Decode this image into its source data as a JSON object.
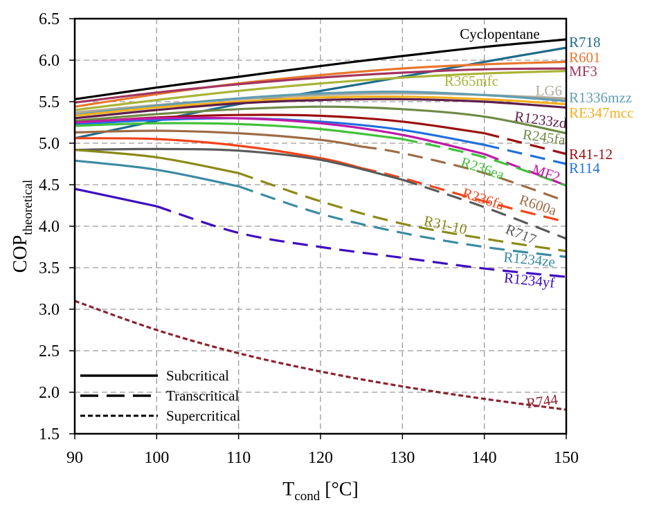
{
  "chart_data": {
    "type": "line",
    "title": "",
    "xlabel": "T",
    "xlabel_sub": "cond",
    "xlabel_unit": " [°C]",
    "ylabel": "COP",
    "ylabel_sub": "theoretical",
    "xlim": [
      90,
      150
    ],
    "ylim": [
      1.5,
      6.5
    ],
    "xticks": [
      90,
      100,
      110,
      120,
      130,
      140,
      150
    ],
    "yticks": [
      "1.5",
      "2.0",
      "2.5",
      "3.0",
      "3.5",
      "4.0",
      "4.5",
      "5.0",
      "5.5",
      "6.0",
      "6.5"
    ],
    "grid": true,
    "legend": {
      "placement": "bottom-left",
      "entries": [
        {
          "label": "Subcritical",
          "style": "solid"
        },
        {
          "label": "Transcritical",
          "style": "dashed"
        },
        {
          "label": "Supercritical",
          "style": "dotted"
        }
      ]
    },
    "x": [
      90,
      100,
      110,
      120,
      130,
      140,
      150
    ],
    "series": [
      {
        "name": "Cyclopentane",
        "color": "#000000",
        "values": [
          5.53,
          5.67,
          5.8,
          5.93,
          6.05,
          6.16,
          6.25
        ],
        "transcritical_from": null
      },
      {
        "name": "R718",
        "color": "#1f6b8a",
        "values": [
          5.06,
          5.27,
          5.47,
          5.63,
          5.8,
          5.98,
          6.15
        ],
        "transcritical_from": null
      },
      {
        "name": "R601",
        "color": "#e8772e",
        "values": [
          5.44,
          5.59,
          5.72,
          5.82,
          5.9,
          5.95,
          5.98
        ],
        "transcritical_from": null
      },
      {
        "name": "MF3",
        "color": "#a3345e",
        "values": [
          5.49,
          5.61,
          5.71,
          5.79,
          5.85,
          5.89,
          5.9
        ],
        "transcritical_from": null
      },
      {
        "name": "R365mfc",
        "color": "#a9b436",
        "values": [
          5.4,
          5.52,
          5.63,
          5.72,
          5.79,
          5.84,
          5.87
        ],
        "transcritical_from": null
      },
      {
        "name": "LG6",
        "color": "#b0aa9a",
        "values": [
          5.37,
          5.46,
          5.53,
          5.58,
          5.6,
          5.58,
          5.54
        ],
        "transcritical_from": null
      },
      {
        "name": "R1336mzz",
        "color": "#5f9db0",
        "values": [
          5.34,
          5.45,
          5.54,
          5.6,
          5.62,
          5.58,
          5.51
        ],
        "transcritical_from": null
      },
      {
        "name": "RE347mcc",
        "color": "#f2b01e",
        "values": [
          5.33,
          5.43,
          5.5,
          5.55,
          5.56,
          5.53,
          5.47
        ],
        "transcritical_from": null
      },
      {
        "name": "R1233zd",
        "color": "#5e1d4c",
        "values": [
          5.3,
          5.4,
          5.48,
          5.52,
          5.53,
          5.5,
          5.43
        ],
        "transcritical_from": null
      },
      {
        "name": "R245fa",
        "color": "#6f8a45",
        "values": [
          5.27,
          5.35,
          5.41,
          5.44,
          5.41,
          5.32,
          5.12
        ],
        "transcritical_from": null
      },
      {
        "name": "R41-12",
        "color": "#9b0e0e",
        "values": [
          5.25,
          5.31,
          5.34,
          5.33,
          5.26,
          5.12,
          4.87
        ],
        "transcritical_from": 140
      },
      {
        "name": "R114",
        "color": "#1f6fe0",
        "values": [
          5.23,
          5.28,
          5.3,
          5.26,
          5.16,
          4.98,
          4.75
        ],
        "transcritical_from": 140
      },
      {
        "name": "MF2",
        "color": "#c01aa8",
        "values": [
          5.25,
          5.3,
          5.3,
          5.24,
          5.1,
          4.87,
          4.49
        ],
        "transcritical_from": 140
      },
      {
        "name": "R236ea",
        "color": "#3fc23a",
        "values": [
          5.21,
          5.24,
          5.23,
          5.17,
          5.05,
          4.83,
          4.49
        ],
        "transcritical_from": 130
      },
      {
        "name": "R600a",
        "color": "#9e6b45",
        "values": [
          5.13,
          5.15,
          5.12,
          5.04,
          4.88,
          4.64,
          4.3
        ],
        "transcritical_from": 125
      },
      {
        "name": "R236fa",
        "color": "#f0441a",
        "values": [
          5.06,
          5.05,
          4.97,
          4.82,
          4.58,
          4.3,
          4.05
        ],
        "transcritical_from": 125
      },
      {
        "name": "R717",
        "color": "#5a5a5a",
        "values": [
          4.92,
          4.93,
          4.91,
          4.8,
          4.56,
          4.23,
          3.85
        ],
        "transcritical_from": 130
      },
      {
        "name": "R31-10",
        "color": "#8a8a16",
        "values": [
          4.92,
          4.83,
          4.64,
          4.3,
          4.03,
          3.85,
          3.7
        ],
        "transcritical_from": 110
      },
      {
        "name": "R1234ze",
        "color": "#3a8aa2",
        "values": [
          4.79,
          4.68,
          4.48,
          4.15,
          3.92,
          3.75,
          3.63
        ],
        "transcritical_from": 110
      },
      {
        "name": "R1234yf",
        "color": "#3d0dbf",
        "values": [
          4.45,
          4.24,
          3.92,
          3.75,
          3.62,
          3.49,
          3.39
        ],
        "transcritical_from": 100
      },
      {
        "name": "R744",
        "color": "#8b2330",
        "values": [
          3.1,
          2.75,
          2.47,
          2.25,
          2.07,
          1.92,
          1.79
        ],
        "transcritical_from": null,
        "supercritical": true
      }
    ],
    "labels": [
      {
        "text": "Cyclopentane",
        "series": "Cyclopentane"
      },
      {
        "text": "R718",
        "series": "R718"
      },
      {
        "text": "R601",
        "series": "R601"
      },
      {
        "text": "MF3",
        "series": "MF3"
      },
      {
        "text": "R365mfc",
        "series": "R365mfc"
      },
      {
        "text": "LG6",
        "series": "LG6"
      },
      {
        "text": "R1336mzz",
        "series": "R1336mzz"
      },
      {
        "text": "RE347mcc",
        "series": "RE347mcc"
      },
      {
        "text": "R1233zd",
        "series": "R1233zd"
      },
      {
        "text": "R245fa",
        "series": "R245fa"
      },
      {
        "text": "R41-12",
        "series": "R41-12"
      },
      {
        "text": "R114",
        "series": "R114"
      },
      {
        "text": "MF2",
        "series": "MF2"
      },
      {
        "text": "R236ea",
        "series": "R236ea"
      },
      {
        "text": "R600a",
        "series": "R600a"
      },
      {
        "text": "R236fa",
        "series": "R236fa"
      },
      {
        "text": "R717",
        "series": "R717"
      },
      {
        "text": "R31-10",
        "series": "R31-10"
      },
      {
        "text": "R1234ze",
        "series": "R1234ze"
      },
      {
        "text": "R1234yf",
        "series": "R1234yf"
      },
      {
        "text": "R744",
        "series": "R744"
      }
    ]
  }
}
